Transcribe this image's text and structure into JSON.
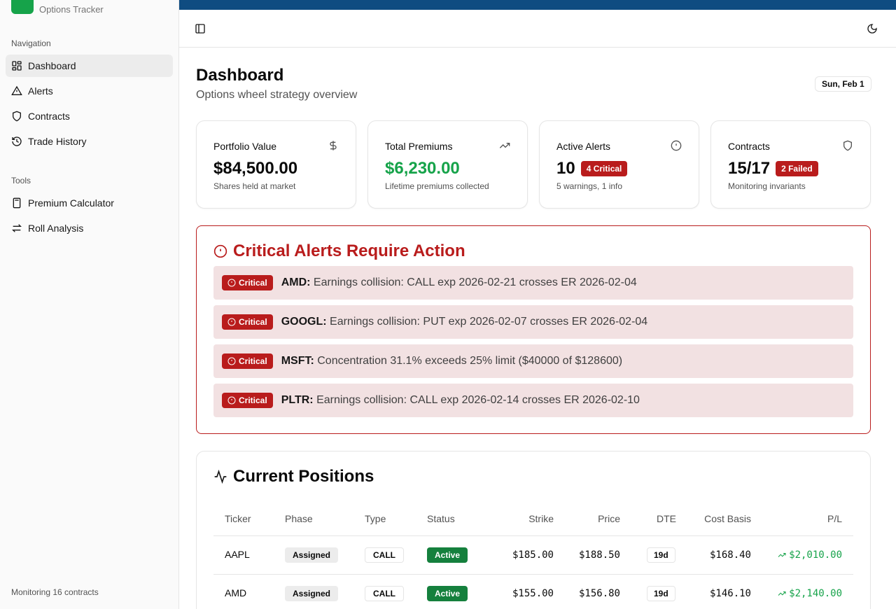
{
  "app": {
    "subtitle": "Options Tracker",
    "accent": "#16a34a",
    "topbar_color": "#0f4c81"
  },
  "sidebar": {
    "navigation_label": "Navigation",
    "nav_items": [
      {
        "label": "Dashboard",
        "icon": "grid-icon",
        "active": true
      },
      {
        "label": "Alerts",
        "icon": "warning-triangle-icon"
      },
      {
        "label": "Contracts",
        "icon": "shield-icon"
      },
      {
        "label": "Trade History",
        "icon": "history-icon"
      }
    ],
    "tools_label": "Tools",
    "tool_items": [
      {
        "label": "Premium Calculator",
        "icon": "calculator-icon"
      },
      {
        "label": "Roll Analysis",
        "icon": "arrows-swap-icon"
      }
    ],
    "footer": "Monitoring 16 contracts"
  },
  "header": {
    "toggle_icon": "sidebar-toggle-icon",
    "theme_icon": "moon-icon"
  },
  "page": {
    "title": "Dashboard",
    "subtitle": "Options wheel strategy overview",
    "date": "Sun, Feb 1"
  },
  "stats": {
    "portfolio": {
      "title": "Portfolio Value",
      "value": "$84,500.00",
      "desc": "Shares held at market",
      "icon": "dollar-icon"
    },
    "premiums": {
      "title": "Total Premiums",
      "value": "$6,230.00",
      "desc": "Lifetime premiums collected",
      "icon": "trending-up-icon"
    },
    "alerts": {
      "title": "Active Alerts",
      "value": "10",
      "badge": "4 Critical",
      "desc": "5 warnings, 1 info",
      "icon": "alert-circle-icon"
    },
    "contracts": {
      "title": "Contracts",
      "value": "15/17",
      "badge": "2 Failed",
      "desc": "Monitoring invariants",
      "icon": "shield-icon"
    }
  },
  "critical_alerts": {
    "title": "Critical Alerts Require Action",
    "badge_label": "Critical",
    "items": [
      {
        "ticker": "AMD:",
        "message": "Earnings collision: CALL exp 2026-02-21 crosses ER 2026-02-04"
      },
      {
        "ticker": "GOOGL:",
        "message": "Earnings collision: PUT exp 2026-02-07 crosses ER 2026-02-04"
      },
      {
        "ticker": "MSFT:",
        "message": "Concentration 31.1% exceeds 25% limit ($40000 of $128600)"
      },
      {
        "ticker": "PLTR:",
        "message": "Earnings collision: CALL exp 2026-02-14 crosses ER 2026-02-10"
      }
    ]
  },
  "positions": {
    "title": "Current Positions",
    "columns": [
      "Ticker",
      "Phase",
      "Type",
      "Status",
      "Strike",
      "Price",
      "DTE",
      "Cost Basis",
      "P/L"
    ],
    "rows": [
      {
        "ticker": "AAPL",
        "phase": "Assigned",
        "type": "CALL",
        "status": "Active",
        "strike": "$185.00",
        "price": "$188.50",
        "dte": "19d",
        "cost_basis": "$168.40",
        "pl": "$2,010.00"
      },
      {
        "ticker": "AMD",
        "phase": "Assigned",
        "type": "CALL",
        "status": "Active",
        "strike": "$155.00",
        "price": "$156.80",
        "dte": "19d",
        "cost_basis": "$146.10",
        "pl": "$2,140.00"
      }
    ]
  }
}
